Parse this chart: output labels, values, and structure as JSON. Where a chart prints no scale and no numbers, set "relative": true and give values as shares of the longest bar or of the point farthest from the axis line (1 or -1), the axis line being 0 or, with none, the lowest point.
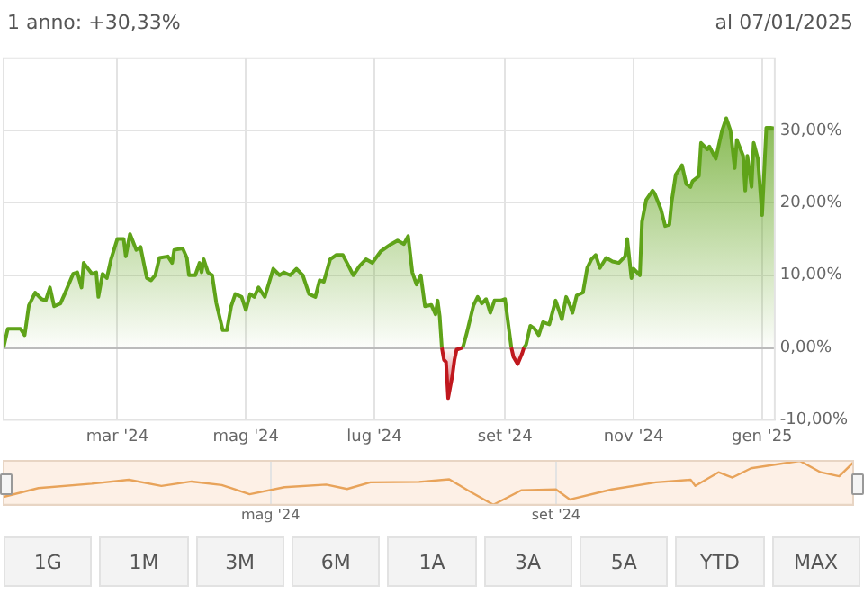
{
  "chart_data": [
    {
      "type": "area",
      "title": "1 anno: +30,33%",
      "subtitle": "al 07/01/2025",
      "xlim": [
        "2024-01-07",
        "2025-01-07"
      ],
      "xticks": [
        {
          "value": "2024-03-01",
          "label": "mar '24"
        },
        {
          "value": "2024-05-01",
          "label": "mag '24"
        },
        {
          "value": "2024-07-01",
          "label": "lug '24"
        },
        {
          "value": "2024-09-01",
          "label": "set '24"
        },
        {
          "value": "2024-11-01",
          "label": "nov '24"
        },
        {
          "value": "2025-01-01",
          "label": "gen '25"
        }
      ],
      "ylim": [
        -10,
        40
      ],
      "yticks": [
        {
          "value": -10,
          "label": "-10,00%"
        },
        {
          "value": 0,
          "label": "0,00%"
        },
        {
          "value": 10,
          "label": "10,00%"
        },
        {
          "value": 20,
          "label": "20,00%"
        },
        {
          "value": 30,
          "label": "30,00%"
        }
      ],
      "grid": true,
      "legend": false,
      "series": [
        {
          "color": "#5fa319",
          "x": [
            "2024-01-07",
            "2024-01-09",
            "2024-01-15",
            "2024-01-17",
            "2024-01-19",
            "2024-01-22",
            "2024-01-25",
            "2024-01-27",
            "2024-01-29",
            "2024-01-31",
            "2024-02-03",
            "2024-02-05",
            "2024-02-09",
            "2024-02-11",
            "2024-02-13",
            "2024-02-14",
            "2024-02-18",
            "2024-02-20",
            "2024-02-21",
            "2024-02-23",
            "2024-02-25",
            "2024-02-27",
            "2024-03-01",
            "2024-03-04",
            "2024-03-05",
            "2024-03-07",
            "2024-03-10",
            "2024-03-12",
            "2024-03-15",
            "2024-03-17",
            "2024-03-19",
            "2024-03-21",
            "2024-03-25",
            "2024-03-27",
            "2024-03-28",
            "2024-04-01",
            "2024-04-03",
            "2024-04-04",
            "2024-04-07",
            "2024-04-09",
            "2024-04-10",
            "2024-04-11",
            "2024-04-13",
            "2024-04-15",
            "2024-04-17",
            "2024-04-20",
            "2024-04-22",
            "2024-04-24",
            "2024-04-26",
            "2024-04-29",
            "2024-05-01",
            "2024-05-03",
            "2024-05-05",
            "2024-05-07",
            "2024-05-10",
            "2024-05-14",
            "2024-05-17",
            "2024-05-19",
            "2024-05-22",
            "2024-05-25",
            "2024-05-28",
            "2024-05-31",
            "2024-06-03",
            "2024-06-05",
            "2024-06-07",
            "2024-06-10",
            "2024-06-13",
            "2024-06-16",
            "2024-06-18",
            "2024-06-21",
            "2024-06-24",
            "2024-06-27",
            "2024-06-30",
            "2024-07-04",
            "2024-07-09",
            "2024-07-12",
            "2024-07-15",
            "2024-07-17",
            "2024-07-19",
            "2024-07-21",
            "2024-07-23",
            "2024-07-25",
            "2024-07-28",
            "2024-07-30",
            "2024-07-31",
            "2024-08-01",
            "2024-08-02",
            "2024-08-07",
            "2024-08-12",
            "2024-08-14",
            "2024-08-17",
            "2024-08-19",
            "2024-08-21",
            "2024-08-23",
            "2024-08-25",
            "2024-08-27",
            "2024-08-30",
            "2024-09-01",
            "2024-09-03",
            "2024-09-04",
            "2024-09-07",
            "2024-09-10",
            "2024-09-11",
            "2024-09-13",
            "2024-09-15",
            "2024-09-17",
            "2024-09-19",
            "2024-09-22",
            "2024-09-25",
            "2024-09-28",
            "2024-09-30",
            "2024-10-02",
            "2024-10-03",
            "2024-10-05",
            "2024-10-08",
            "2024-10-10",
            "2024-10-12",
            "2024-10-14",
            "2024-10-16",
            "2024-10-19",
            "2024-10-22",
            "2024-10-25",
            "2024-10-28",
            "2024-10-29",
            "2024-10-31",
            "2024-11-01",
            "2024-11-04",
            "2024-11-05",
            "2024-11-07",
            "2024-11-10",
            "2024-11-11",
            "2024-11-14",
            "2024-11-16",
            "2024-11-18",
            "2024-11-19",
            "2024-11-21",
            "2024-11-24",
            "2024-11-26",
            "2024-11-28",
            "2024-11-29",
            "2024-12-02",
            "2024-12-03",
            "2024-12-06",
            "2024-12-07",
            "2024-12-10",
            "2024-12-12",
            "2024-12-13",
            "2024-12-15",
            "2024-12-17",
            "2024-12-19",
            "2024-12-20",
            "2024-12-23",
            "2024-12-24",
            "2024-12-25",
            "2024-12-27",
            "2024-12-28",
            "2024-12-30",
            "2025-01-01",
            "2025-01-03",
            "2025-01-05",
            "2025-01-07"
          ],
          "values": [
            0,
            2.6,
            2.6,
            1.7,
            5.8,
            7.6,
            6.7,
            6.5,
            8.3,
            5.7,
            6.1,
            7.4,
            10.2,
            10.4,
            8.3,
            11.7,
            10.2,
            10.4,
            7,
            10.2,
            9.6,
            12.2,
            15,
            15,
            12.6,
            15.7,
            13.5,
            13.9,
            9.6,
            9.3,
            10,
            12.4,
            12.6,
            11.7,
            13.5,
            13.7,
            12.4,
            10,
            10,
            11.7,
            10.4,
            12.2,
            10.4,
            10,
            6.1,
            2.4,
            2.4,
            5.7,
            7.4,
            7,
            5.2,
            7.4,
            7,
            8.3,
            7,
            10.9,
            10,
            10.4,
            10,
            10.9,
            10,
            7.4,
            7,
            9.3,
            9.1,
            12.2,
            12.8,
            12.8,
            11.7,
            10,
            11.3,
            12.2,
            11.7,
            13.3,
            14.3,
            14.8,
            14.3,
            15.4,
            10.4,
            8.7,
            10,
            5.7,
            5.9,
            4.6,
            6.5,
            4.3,
            0,
            null,
            0,
            2.2,
            5.8,
            7,
            6.1,
            6.7,
            4.8,
            6.5,
            6.5,
            6.7,
            2.2,
            0,
            null,
            0,
            0.4,
            3,
            2.6,
            1.7,
            3.5,
            3.2,
            6.5,
            3.9,
            7,
            5.7,
            4.8,
            7.2,
            7.6,
            11,
            12.2,
            12.8,
            11,
            12.4,
            11.9,
            11.7,
            12.6,
            15,
            9.6,
            10.9,
            10,
            17.4,
            20.4,
            21.7,
            21.3,
            19.1,
            16.8,
            17,
            20,
            23.9,
            25.2,
            22.6,
            22.2,
            23,
            23.7,
            28.3,
            27.4,
            27.8,
            26.1,
            28.7,
            30,
            31.7,
            30,
            24.8,
            28.7,
            26.5,
            21.7,
            26.5,
            22.2,
            28.3,
            26.1,
            18.3,
            30.4,
            30.4,
            30.3
          ]
        },
        {
          "color": "#c0171d",
          "x": [
            "2024-08-02",
            "2024-08-03",
            "2024-08-04",
            "2024-08-05",
            "2024-08-07",
            "2024-08-08",
            "2024-08-09",
            "2024-08-12",
            "2024-08-20",
            "2024-09-04",
            "2024-09-05",
            "2024-09-07",
            "2024-09-09",
            "2024-09-10"
          ],
          "values": [
            0,
            -1.7,
            -2,
            -7,
            -3.9,
            -1.7,
            -0.3,
            0,
            null,
            0,
            -1.3,
            -2.3,
            -0.9,
            0
          ]
        }
      ]
    },
    {
      "type": "line",
      "relative": true,
      "xlim": [
        "2024-01-07",
        "2025-01-07"
      ],
      "xticks": [
        {
          "value": "2024-05-01",
          "label": "mag '24"
        },
        {
          "value": "2024-09-01",
          "label": "set '24"
        }
      ],
      "tick_labels": "x",
      "grid": "x",
      "legend": false,
      "series": [
        {
          "color": "#e8a35a",
          "x": [
            "2024-01-07",
            "2024-01-22",
            "2024-02-14",
            "2024-03-01",
            "2024-03-15",
            "2024-03-28",
            "2024-04-10",
            "2024-04-22",
            "2024-05-07",
            "2024-05-25",
            "2024-06-03",
            "2024-06-13",
            "2024-07-04",
            "2024-07-17",
            "2024-07-25",
            "2024-08-05",
            "2024-08-17",
            "2024-09-01",
            "2024-09-07",
            "2024-09-25",
            "2024-10-14",
            "2024-10-29",
            "2024-10-31",
            "2024-11-10",
            "2024-11-16",
            "2024-11-24",
            "2024-12-15",
            "2024-12-24",
            "2025-01-01",
            "2025-01-07"
          ],
          "values": [
            0.18,
            0.38,
            0.48,
            0.57,
            0.43,
            0.53,
            0.45,
            0.24,
            0.4,
            0.46,
            0.36,
            0.51,
            0.52,
            0.58,
            0.33,
            0,
            0.33,
            0.35,
            0.12,
            0.35,
            0.51,
            0.57,
            0.43,
            0.74,
            0.62,
            0.83,
            1,
            0.74,
            0.65,
            0.96
          ]
        }
      ]
    },
    {
      "type": "other",
      "annotations": [
        "1G",
        "1M",
        "3M",
        "6M",
        "1A",
        "3A",
        "5A",
        "YTD",
        "MAX"
      ]
    }
  ]
}
